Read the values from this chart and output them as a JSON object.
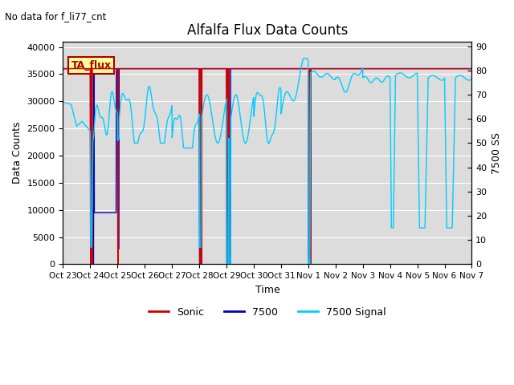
{
  "title": "Alfalfa Flux Data Counts",
  "subtitle": "No data for f_li77_cnt",
  "xlabel": "Time",
  "ylabel_left": "Data Counts",
  "ylabel_right": "7500 SS",
  "ylim_left": [
    0,
    41000
  ],
  "ylim_right": [
    0,
    92
  ],
  "yticks_left": [
    0,
    5000,
    10000,
    15000,
    20000,
    25000,
    30000,
    35000,
    40000
  ],
  "yticks_right": [
    0,
    10,
    20,
    30,
    40,
    50,
    60,
    70,
    80,
    90
  ],
  "bg_color": "#dcdcdc",
  "legend_box_facecolor": "#ffff99",
  "legend_box_edgecolor": "#aa0000",
  "legend_box_text": "TA_flux",
  "legend_box_textcolor": "#aa0000",
  "sonic_color": "#cc0000",
  "blue7500_color": "#0000bb",
  "cyan_color": "#00ccff",
  "linewidth": 1.0,
  "xtick_labels": [
    "Oct 23",
    "Oct 24",
    "Oct 25",
    "Oct 26",
    "Oct 27",
    "Oct 28",
    "Oct 29",
    "Oct 30",
    "Oct 31",
    "Nov 1",
    "Nov 2",
    "Nov 3",
    "Nov 4",
    "Nov 5",
    "Nov 6",
    "Nov 7"
  ],
  "figsize": [
    6.4,
    4.8
  ],
  "dpi": 100
}
